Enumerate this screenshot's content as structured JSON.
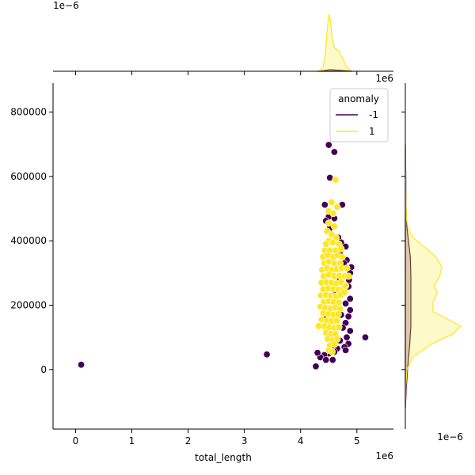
{
  "chart_data": {
    "type": "scatter",
    "title": "",
    "xlabel": "total_length",
    "ylabel": "",
    "x_offset_label": "1e6",
    "y_offset_label": "",
    "top_marginal_offset_label": "1e−6",
    "right_marginal_offset_label": "1e−6",
    "x_scale_factor": 1000000,
    "xlim": [
      -0.4,
      5.65
    ],
    "ylim": [
      -185000,
      890000
    ],
    "x_ticks": [
      0,
      1,
      2,
      3,
      4,
      5
    ],
    "x_tick_labels": [
      "0",
      "1",
      "2",
      "3",
      "4",
      "5"
    ],
    "y_ticks": [
      0,
      200000,
      400000,
      600000,
      800000
    ],
    "y_tick_labels": [
      "0",
      "200000",
      "400000",
      "600000",
      "800000"
    ],
    "grid": false,
    "legend": {
      "title": "anomaly",
      "placement": "top-right",
      "entries": [
        {
          "label": "-1",
          "color": "#440154"
        },
        {
          "label": "1",
          "color": "#fde725"
        }
      ]
    },
    "series": [
      {
        "name": "-1",
        "color": "#440154",
        "points": [
          [
            0.1,
            15000
          ],
          [
            3.4,
            47000
          ],
          [
            4.5,
            698000
          ],
          [
            4.6,
            676000
          ],
          [
            4.52,
            596000
          ],
          [
            4.43,
            512000
          ],
          [
            4.74,
            512000
          ],
          [
            4.5,
            475000
          ],
          [
            4.6,
            470000
          ],
          [
            4.45,
            462000
          ],
          [
            4.52,
            440000
          ],
          [
            4.67,
            410000
          ],
          [
            4.72,
            395000
          ],
          [
            4.8,
            382000
          ],
          [
            4.7,
            360000
          ],
          [
            4.82,
            340000
          ],
          [
            4.9,
            318000
          ],
          [
            4.88,
            300000
          ],
          [
            4.86,
            278000
          ],
          [
            4.85,
            258000
          ],
          [
            4.78,
            245000
          ],
          [
            4.88,
            220000
          ],
          [
            4.8,
            205000
          ],
          [
            4.88,
            185000
          ],
          [
            4.72,
            170000
          ],
          [
            4.85,
            165000
          ],
          [
            4.8,
            145000
          ],
          [
            4.75,
            130000
          ],
          [
            4.88,
            120000
          ],
          [
            4.82,
            100000
          ],
          [
            4.7,
            90000
          ],
          [
            4.85,
            80000
          ],
          [
            4.78,
            70000
          ],
          [
            4.65,
            65000
          ],
          [
            4.8,
            60000
          ],
          [
            4.55,
            72000
          ],
          [
            4.6,
            55000
          ],
          [
            4.5,
            50000
          ],
          [
            4.42,
            45000
          ],
          [
            4.35,
            38000
          ],
          [
            4.3,
            52000
          ],
          [
            4.45,
            30000
          ],
          [
            4.57,
            30000
          ],
          [
            4.27,
            10000
          ],
          [
            5.15,
            100000
          ],
          [
            4.48,
            120000
          ],
          [
            4.62,
            240000
          ],
          [
            4.58,
            310000
          ],
          [
            4.7,
            280000
          ],
          [
            4.66,
            200000
          ],
          [
            4.42,
            170000
          ],
          [
            4.77,
            330000
          ],
          [
            4.53,
            150000
          ]
        ]
      },
      {
        "name": "1",
        "color": "#fde725",
        "points": [
          [
            4.62,
            590000
          ],
          [
            4.5,
            492000
          ],
          [
            4.55,
            520000
          ],
          [
            4.65,
            505000
          ],
          [
            4.58,
            485000
          ],
          [
            4.5,
            455000
          ],
          [
            4.47,
            430000
          ],
          [
            4.6,
            445000
          ],
          [
            4.55,
            420000
          ],
          [
            4.63,
            410000
          ],
          [
            4.5,
            400000
          ],
          [
            4.45,
            390000
          ],
          [
            4.57,
            395000
          ],
          [
            4.68,
            390000
          ],
          [
            4.43,
            370000
          ],
          [
            4.52,
            370000
          ],
          [
            4.62,
            370000
          ],
          [
            4.72,
            375000
          ],
          [
            4.4,
            350000
          ],
          [
            4.48,
            355000
          ],
          [
            4.58,
            350000
          ],
          [
            4.66,
            355000
          ],
          [
            4.74,
            350000
          ],
          [
            4.42,
            330000
          ],
          [
            4.5,
            335000
          ],
          [
            4.6,
            330000
          ],
          [
            4.7,
            330000
          ],
          [
            4.38,
            310000
          ],
          [
            4.47,
            315000
          ],
          [
            4.56,
            310000
          ],
          [
            4.64,
            312000
          ],
          [
            4.73,
            315000
          ],
          [
            4.41,
            290000
          ],
          [
            4.5,
            295000
          ],
          [
            4.6,
            290000
          ],
          [
            4.69,
            292000
          ],
          [
            4.78,
            290000
          ],
          [
            4.37,
            270000
          ],
          [
            4.46,
            272000
          ],
          [
            4.55,
            270000
          ],
          [
            4.64,
            268000
          ],
          [
            4.72,
            272000
          ],
          [
            4.4,
            250000
          ],
          [
            4.49,
            252000
          ],
          [
            4.58,
            250000
          ],
          [
            4.67,
            248000
          ],
          [
            4.76,
            252000
          ],
          [
            4.36,
            230000
          ],
          [
            4.45,
            232000
          ],
          [
            4.54,
            230000
          ],
          [
            4.63,
            228000
          ],
          [
            4.71,
            232000
          ],
          [
            4.41,
            210000
          ],
          [
            4.5,
            212000
          ],
          [
            4.59,
            210000
          ],
          [
            4.68,
            208000
          ],
          [
            4.35,
            195000
          ],
          [
            4.44,
            192000
          ],
          [
            4.53,
            190000
          ],
          [
            4.62,
            192000
          ],
          [
            4.7,
            188000
          ],
          [
            4.4,
            175000
          ],
          [
            4.49,
            172000
          ],
          [
            4.58,
            170000
          ],
          [
            4.67,
            172000
          ],
          [
            4.37,
            155000
          ],
          [
            4.46,
            152000
          ],
          [
            4.55,
            150000
          ],
          [
            4.64,
            152000
          ],
          [
            4.42,
            135000
          ],
          [
            4.51,
            132000
          ],
          [
            4.6,
            130000
          ],
          [
            4.68,
            132000
          ],
          [
            4.45,
            115000
          ],
          [
            4.54,
            112000
          ],
          [
            4.62,
            110000
          ],
          [
            4.48,
            95000
          ],
          [
            4.57,
            92000
          ],
          [
            4.65,
            95000
          ],
          [
            4.52,
            75000
          ],
          [
            4.6,
            78000
          ],
          [
            4.5,
            60000
          ],
          [
            4.56,
            55000
          ],
          [
            4.32,
            135000
          ],
          [
            4.82,
            315000
          ],
          [
            4.85,
            290000
          ],
          [
            4.78,
            240000
          ],
          [
            4.8,
            260000
          ]
        ]
      }
    ],
    "top_marginal_density": {
      "x": [
        4.3,
        4.35,
        4.4,
        4.44,
        4.47,
        4.5,
        4.53,
        4.56,
        4.6,
        4.65,
        4.7,
        4.75,
        4.8,
        4.86,
        4.92
      ],
      "y_series_1": [
        0,
        0.02,
        0.08,
        0.3,
        0.7,
        1.0,
        0.9,
        0.58,
        0.42,
        0.38,
        0.32,
        0.22,
        0.1,
        0.03,
        0
      ],
      "y_series_neg1": [
        0,
        0.005,
        0.01,
        0.015,
        0.02,
        0.025,
        0.027,
        0.026,
        0.024,
        0.02,
        0.016,
        0.012,
        0.008,
        0.004,
        0
      ]
    },
    "right_marginal_density": {
      "y": [
        -120000,
        -50000,
        0,
        40000,
        80000,
        110000,
        135000,
        155000,
        180000,
        210000,
        240000,
        260000,
        290000,
        320000,
        350000,
        380000,
        410000,
        440000,
        470000,
        520000,
        600000,
        700000
      ],
      "x_series_1": [
        0,
        0.01,
        0.03,
        0.14,
        0.48,
        0.85,
        1.0,
        0.78,
        0.5,
        0.5,
        0.58,
        0.52,
        0.62,
        0.66,
        0.55,
        0.35,
        0.14,
        0.05,
        0.02,
        0.01,
        0.005,
        0
      ],
      "x_series_neg1": [
        0,
        0.02,
        0.04,
        0.06,
        0.08,
        0.09,
        0.1,
        0.1,
        0.1,
        0.1,
        0.1,
        0.1,
        0.1,
        0.095,
        0.09,
        0.07,
        0.05,
        0.03,
        0.02,
        0.012,
        0.008,
        0
      ]
    }
  }
}
